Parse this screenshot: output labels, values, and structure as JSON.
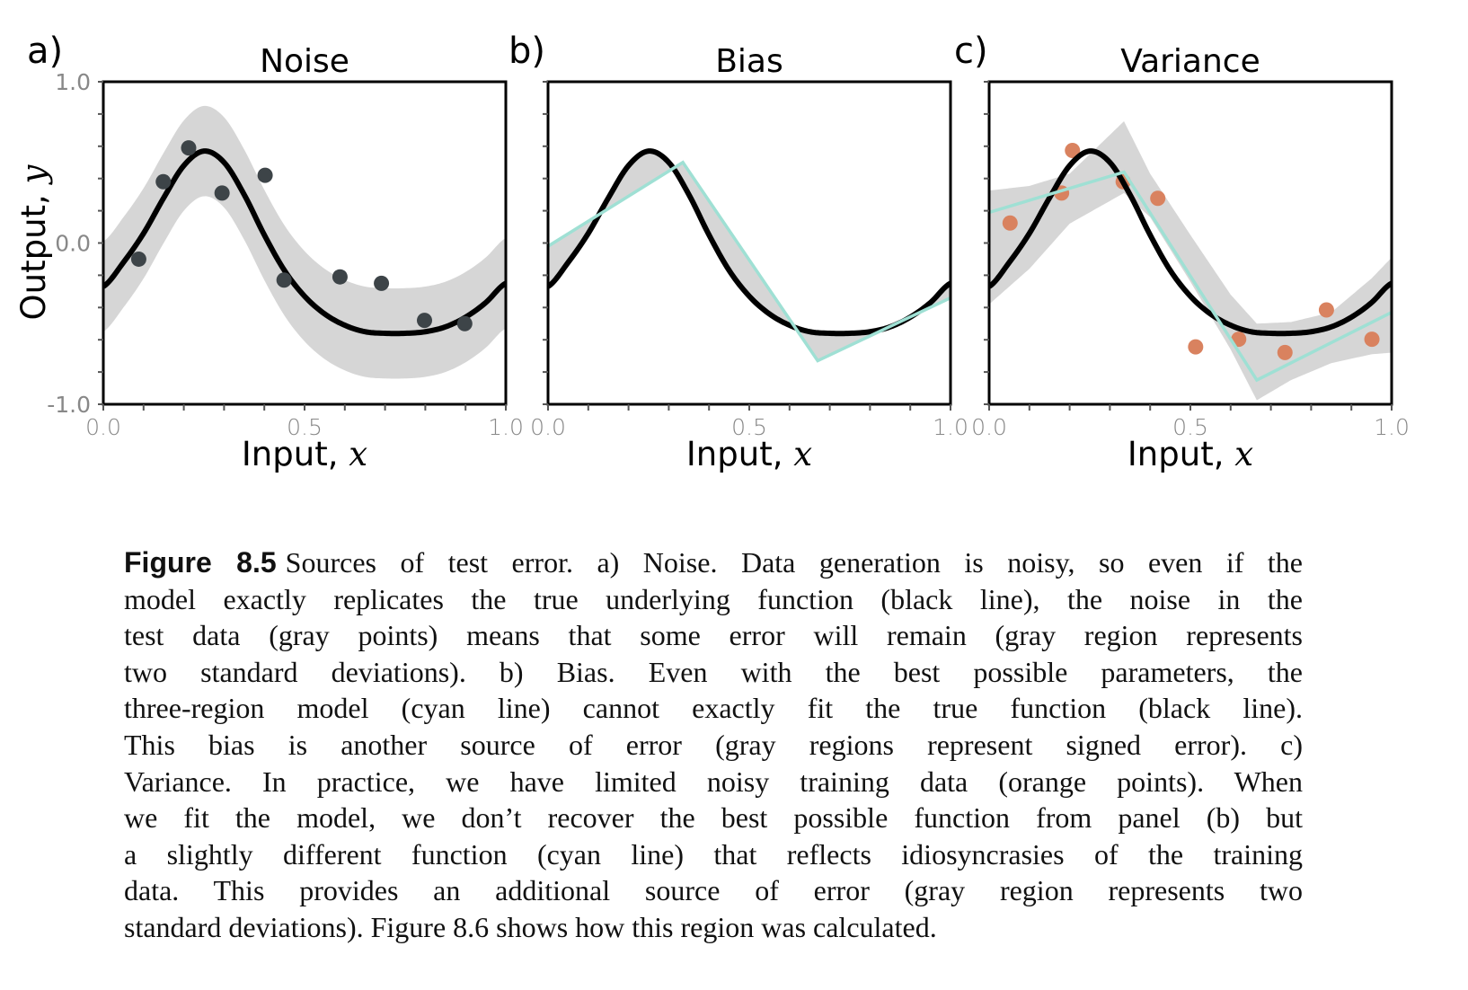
{
  "chart_data": [
    {
      "type": "line",
      "panel_label": "a)",
      "title": "Noise",
      "xlabel": "Input, ",
      "xlabel_var": "x",
      "ylabel": "Output, ",
      "ylabel_var": "y",
      "xlim": [
        0,
        1
      ],
      "ylim": [
        -1,
        1
      ],
      "x_tick_labels": [
        "0.0",
        "0.5",
        "1.0"
      ],
      "y_tick_labels": [
        "1.0",
        "0.0",
        "-1.0"
      ],
      "true_function": {
        "color": "#000000",
        "x": [
          0,
          0.05,
          0.1,
          0.15,
          0.2,
          0.25,
          0.3,
          0.35,
          0.4,
          0.45,
          0.5,
          0.55,
          0.6,
          0.65,
          0.7,
          0.75,
          0.8,
          0.85,
          0.9,
          0.95,
          1.0
        ],
        "y": [
          -0.27,
          -0.12,
          0.06,
          0.28,
          0.48,
          0.57,
          0.5,
          0.3,
          0.05,
          -0.17,
          -0.33,
          -0.44,
          -0.51,
          -0.55,
          -0.56,
          -0.56,
          -0.55,
          -0.52,
          -0.46,
          -0.37,
          -0.25
        ]
      },
      "band": {
        "type": "offset",
        "half_width": 0.28,
        "color": "#d6d6d6"
      },
      "points": {
        "color": "#3d4448",
        "x": [
          0.088,
          0.149,
          0.212,
          0.295,
          0.402,
          0.449,
          0.588,
          0.691,
          0.798,
          0.898
        ],
        "y": [
          -0.1,
          0.38,
          0.59,
          0.31,
          0.42,
          -0.23,
          -0.21,
          -0.25,
          -0.48,
          -0.5
        ]
      }
    },
    {
      "type": "line",
      "panel_label": "b)",
      "title": "Bias",
      "xlabel": "Input, ",
      "xlabel_var": "x",
      "xlim": [
        0,
        1
      ],
      "ylim": [
        -1,
        1
      ],
      "x_tick_labels": [
        "0.0",
        "0.5",
        "1.0"
      ],
      "true_function": {
        "color": "#000000",
        "same_as_panel": "a"
      },
      "model": {
        "color": "#9fe0d4",
        "x": [
          0,
          0.335,
          0.67,
          1.0
        ],
        "y": [
          -0.02,
          0.5,
          -0.73,
          -0.34
        ]
      },
      "band": {
        "type": "between_function_and_model",
        "color": "#d6d6d6"
      }
    },
    {
      "type": "line",
      "panel_label": "c)",
      "title": "Variance",
      "xlabel": "Input, ",
      "xlabel_var": "x",
      "xlim": [
        0,
        1
      ],
      "ylim": [
        -1,
        1
      ],
      "x_tick_labels": [
        "0.0",
        "0.5",
        "1.0"
      ],
      "true_function": {
        "color": "#000000",
        "same_as_panel": "a"
      },
      "model": {
        "color": "#9fe0d4",
        "x": [
          0,
          0.335,
          0.665,
          1.0
        ],
        "y": [
          0.19,
          0.44,
          -0.85,
          -0.43
        ]
      },
      "band": {
        "type": "explicit",
        "color": "#d6d6d6",
        "x": [
          0,
          0.1,
          0.2,
          0.335,
          0.4,
          0.5,
          0.6,
          0.665,
          0.75,
          0.85,
          0.95,
          1.0
        ],
        "upper": [
          0.325,
          0.354,
          0.43,
          0.755,
          0.43,
          0.05,
          -0.32,
          -0.5,
          -0.49,
          -0.43,
          -0.22,
          -0.09
        ],
        "lower": [
          -0.38,
          -0.16,
          0.12,
          0.31,
          0.16,
          -0.24,
          -0.66,
          -0.975,
          -0.85,
          -0.745,
          -0.69,
          -0.68
        ]
      },
      "points": {
        "color": "#d9825f",
        "x": [
          0.052,
          0.18,
          0.207,
          0.333,
          0.419,
          0.513,
          0.62,
          0.735,
          0.838,
          0.951
        ],
        "y": [
          0.124,
          0.31,
          0.574,
          0.38,
          0.277,
          -0.644,
          -0.597,
          -0.679,
          -0.415,
          -0.597
        ]
      }
    }
  ],
  "caption": {
    "label": "Figure 8.5",
    "lines": [
      "Sources of test error. a) Noise. Data generation is noisy, so even if the",
      "model exactly replicates the true underlying function (black line), the noise in the",
      "test data (gray points) means that some error will remain (gray region represents",
      "two standard deviations). b) Bias. Even with the best possible parameters, the",
      "three-region model (cyan line) cannot exactly fit the true function (black line).",
      "This bias is another source of error (gray regions represent signed error). c)",
      "Variance. In practice, we have limited noisy training data (orange points). When",
      "we fit the model, we don’t recover the best possible function from panel (b) but",
      "a slightly different function (cyan line) that reflects idiosyncrasies of the training",
      "data. This provides an additional source of error (gray region represents two",
      "standard deviations). Figure 8.6 shows how this region was calculated."
    ]
  }
}
